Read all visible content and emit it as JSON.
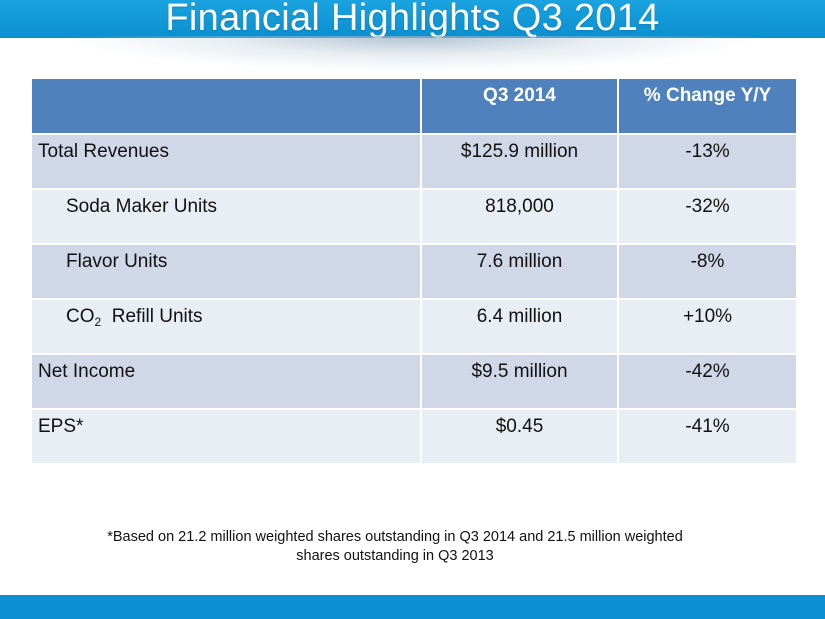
{
  "slide": {
    "title": "Financial Highlights Q3 2014"
  },
  "table": {
    "header": {
      "label": "",
      "col1": "Q3 2014",
      "col2": "% Change Y/Y"
    },
    "rows": [
      {
        "label": "Total Revenues",
        "value": "$125.9 million",
        "change": "-13%"
      },
      {
        "label": "Soda Maker Units",
        "value": "818,000",
        "change": "-32%"
      },
      {
        "label": "Flavor Units",
        "value": "7.6 million",
        "change": "-8%"
      },
      {
        "label_main": "CO",
        "label_sub": "2",
        "label_rest": "Refill Units",
        "value": "6.4 million",
        "change": "+10%"
      },
      {
        "label": "Net Income",
        "value": "$9.5 million",
        "change": "-42%"
      },
      {
        "label": "EPS*",
        "value": "$0.45",
        "change": "-41%"
      }
    ]
  },
  "footnote": {
    "line1": "*Based on 21.2 million weighted shares outstanding in Q3 2014 and 21.5 million weighted",
    "line2": "shares outstanding in Q3 2013"
  },
  "colors": {
    "title_bar": "#0b8fd0",
    "header_fill": "#4f81bd",
    "row_dark": "#d0d8e8",
    "row_light": "#e9edf4",
    "bottom_bar": "#0b91d4"
  }
}
